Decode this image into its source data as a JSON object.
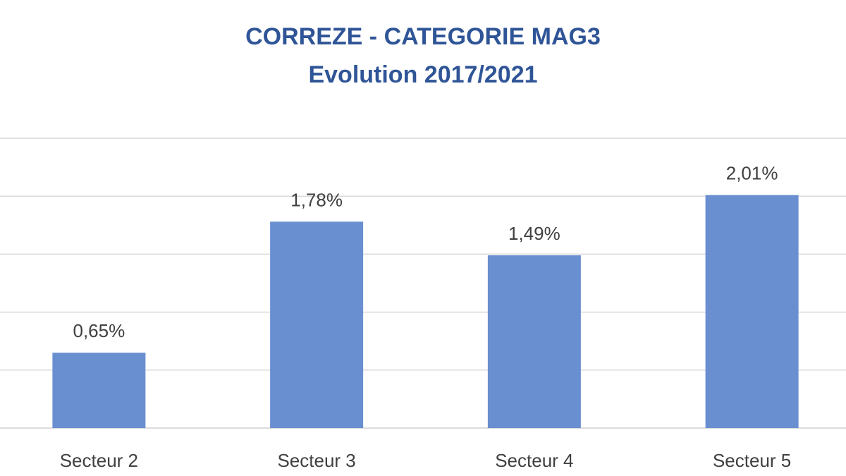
{
  "chart_data": {
    "type": "bar",
    "title": "CORREZE - CATEGORIE MAG3",
    "subtitle": "Evolution 2017/2021",
    "categories": [
      "Secteur 2",
      "Secteur 3",
      "Secteur 4",
      "Secteur 5"
    ],
    "values": [
      0.65,
      1.78,
      1.49,
      2.01
    ],
    "data_labels": [
      "0,65%",
      "1,78%",
      "1,49%",
      "2,01%"
    ],
    "unit": "%",
    "ylim": [
      0,
      2.5
    ],
    "ytick_step": 0.5,
    "grid": true,
    "bar_color": "#6a8fd0",
    "title_color": "#2f5597"
  }
}
